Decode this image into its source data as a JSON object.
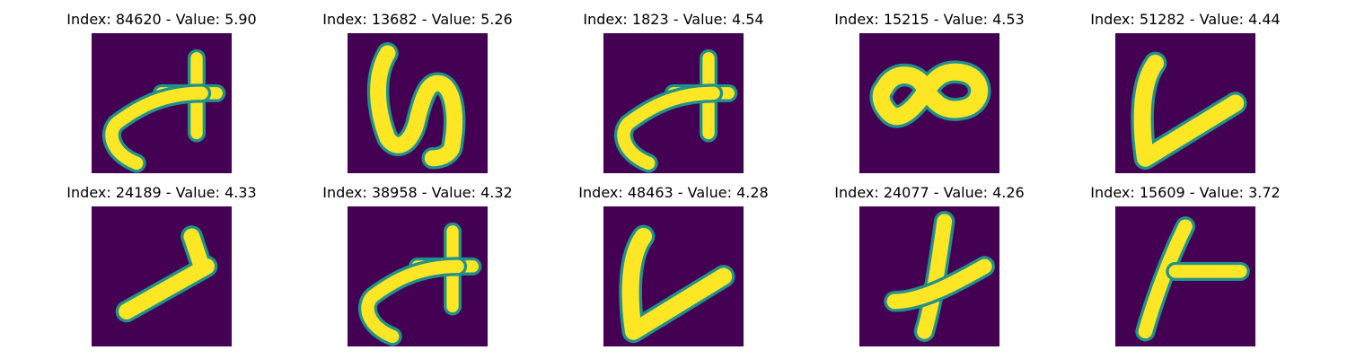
{
  "colors": {
    "background": "#440154",
    "stroke_mid": "#21918c",
    "stroke_core": "#fde725"
  },
  "cells": [
    {
      "title": "Index: 84620 - Value: 5.90",
      "index": 84620,
      "value": 5.9,
      "glyph": "plus-with-curve"
    },
    {
      "title": "Index: 13682 - Value: 5.26",
      "index": 13682,
      "value": 5.26,
      "glyph": "s-shape"
    },
    {
      "title": "Index: 1823 - Value: 4.54",
      "index": 1823,
      "value": 4.54,
      "glyph": "plus-with-curve"
    },
    {
      "title": "Index: 15215 - Value: 4.53",
      "index": 15215,
      "value": 4.53,
      "glyph": "double-loop"
    },
    {
      "title": "Index: 51282 - Value: 4.44",
      "index": 51282,
      "value": 4.44,
      "glyph": "v-shape"
    },
    {
      "title": "Index: 24189 - Value: 4.33",
      "index": 24189,
      "value": 4.33,
      "glyph": "diagonal-bar"
    },
    {
      "title": "Index: 38958 - Value: 4.32",
      "index": 38958,
      "value": 4.32,
      "glyph": "plus-with-curve"
    },
    {
      "title": "Index: 48463 - Value: 4.28",
      "index": 48463,
      "value": 4.28,
      "glyph": "v-shape"
    },
    {
      "title": "Index: 24077 - Value: 4.26",
      "index": 24077,
      "value": 4.26,
      "glyph": "cross"
    },
    {
      "title": "Index: 15609 - Value: 3.72",
      "index": 15609,
      "value": 3.72,
      "glyph": "k-shape"
    }
  ]
}
